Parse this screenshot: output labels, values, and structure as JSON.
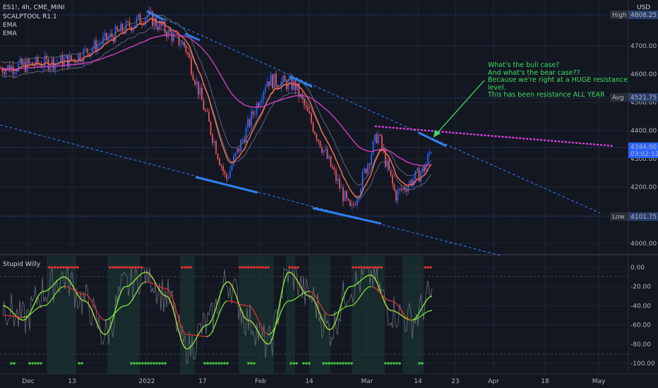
{
  "header": {
    "symbol": "ES1!, 4h, CME_MINI",
    "indicators": [
      "SCALPTOOL R1.1",
      "EMA",
      "EMA"
    ],
    "currency": "USD"
  },
  "oscillator": {
    "name": "Stupid Willy"
  },
  "annotation": {
    "lines": [
      "What's the bull case?",
      "And what's the bear case??",
      "Because we're right at a HUGE resistance",
      "level.",
      "This has been resistance ALL YEAR"
    ]
  },
  "colors": {
    "background": "#131722",
    "up": "#2962ff",
    "down": "#ef5350",
    "ema_fast": "#f06c4f",
    "ema_slow": "#c43fb5",
    "trendline": "#2f80ed",
    "resistance_dotted": "#d83fd8",
    "annotation": "#3ddc5e",
    "osc_green": "#7ee13a",
    "osc_red": "#e0332f"
  },
  "chart_data": [
    {
      "type": "candlestick",
      "title": "ES1!, 4h, CME_MINI",
      "x_ticks": [
        "Dec",
        "13",
        "2022",
        "17",
        "Feb",
        "14",
        "Mar",
        "14",
        "23",
        "Apr",
        "18",
        "May"
      ],
      "y_ticks": [
        "4700.00",
        "4600.00",
        "4500.00",
        "4400.00",
        "4300.00",
        "4200.00",
        "4100.00",
        "4000.00"
      ],
      "ylim": [
        3960,
        4840
      ],
      "price_labels": {
        "high_tag": "High",
        "high": "4808.25",
        "avg_tag": "Avg",
        "avg": "4521.75",
        "current": "4344.00",
        "countdown": "03:02:12",
        "low_tag": "Low",
        "low": "4101.75"
      },
      "key_points": [
        {
          "x": "Nov 29",
          "y": 4620
        },
        {
          "x": "Dec 13",
          "y": 4650
        },
        {
          "x": "Jan 3",
          "y": 4808
        },
        {
          "x": "Jan 14",
          "y": 4700
        },
        {
          "x": "Jan 24",
          "y": 4225
        },
        {
          "x": "Feb 2",
          "y": 4580
        },
        {
          "x": "Feb 10",
          "y": 4560
        },
        {
          "x": "Feb 24",
          "y": 4110
        },
        {
          "x": "Mar 1",
          "y": 4390
        },
        {
          "x": "Mar 7",
          "y": 4170
        },
        {
          "x": "Mar 14",
          "y": 4260
        },
        {
          "x": "Mar 17",
          "y": 4344
        }
      ]
    },
    {
      "type": "line",
      "title": "Stupid Willy",
      "y_ticks": [
        "0.00",
        "-20.00",
        "-40.00",
        "-60.00",
        "-80.00",
        "-100.00"
      ],
      "ylim": [
        -105,
        5
      ],
      "series": [
        {
          "values": [
            -40,
            -55,
            -25,
            -10,
            -35,
            -70,
            -20,
            -5,
            -30,
            -85,
            -60,
            -15,
            -55,
            -80,
            -5,
            -30,
            -65,
            -20,
            -8,
            -45,
            -55,
            -30
          ]
        },
        {
          "values": [
            -50,
            -52,
            -40,
            -20,
            -28,
            -55,
            -40,
            -15,
            -22,
            -70,
            -72,
            -35,
            -40,
            -70,
            -35,
            -25,
            -50,
            -40,
            -20,
            -35,
            -55,
            -45
          ]
        }
      ]
    }
  ]
}
